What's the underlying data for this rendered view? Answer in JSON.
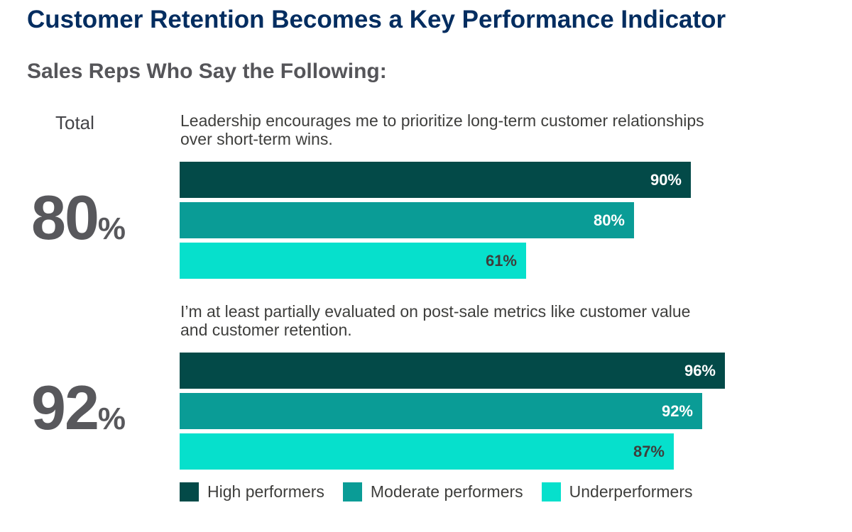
{
  "title": "Customer Retention Becomes a Key Performance Indicator",
  "subtitle": "Sales Reps Who Say the Following:",
  "total_label": "Total",
  "colors": {
    "title": "#032d60",
    "high": "#034a48",
    "moderate": "#0a9c96",
    "under": "#06e0cc",
    "label_light": "#ffffff",
    "label_dark": "#3e3e3c"
  },
  "chart_data": {
    "type": "bar",
    "orientation": "horizontal",
    "title": "Customer Retention Becomes a Key Performance Indicator",
    "subtitle": "Sales Reps Who Say the Following:",
    "xlim": [
      0,
      100
    ],
    "value_suffix": "%",
    "series_names": [
      "High performers",
      "Moderate performers",
      "Underperformers"
    ],
    "groups": [
      {
        "question": "Leadership encourages me to prioritize long-term customer relationships over short-term wins.",
        "total": 80,
        "values": [
          90,
          80,
          61
        ]
      },
      {
        "question": "I’m at least partially evaluated on post-sale metrics like customer value and customer retention.",
        "total": 92,
        "values": [
          96,
          92,
          87
        ]
      }
    ],
    "legend": [
      "High performers",
      "Moderate performers",
      "Underperformers"
    ]
  }
}
